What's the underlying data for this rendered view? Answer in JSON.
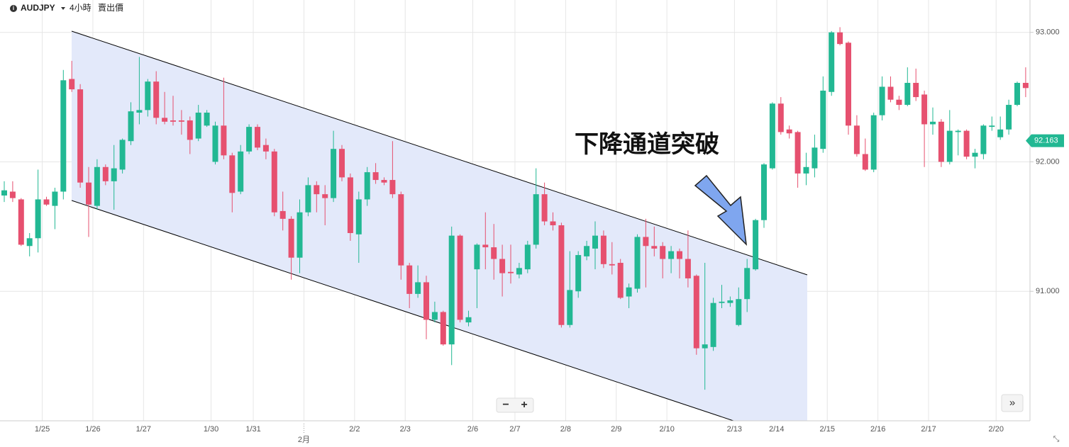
{
  "chart_data": {
    "type": "candlestick",
    "symbol": "AUDJPY",
    "interval": "4小時",
    "price_type": "賣出價",
    "annotation": "下降通道突破",
    "categories": [
      null,
      null,
      null,
      null,
      null,
      "1/25",
      null,
      null,
      null,
      null,
      null,
      "1/26",
      null,
      null,
      null,
      null,
      null,
      "1/27",
      null,
      null,
      null,
      null,
      null,
      null,
      null,
      "1/30",
      null,
      null,
      null,
      null,
      "1/31",
      null,
      null,
      null,
      null,
      null,
      "2月",
      null,
      null,
      null,
      null,
      null,
      "2/2",
      null,
      null,
      null,
      null,
      null,
      "2/3",
      null,
      null,
      null,
      null,
      null,
      null,
      null,
      "2/6",
      null,
      null,
      null,
      null,
      "2/7",
      null,
      null,
      null,
      null,
      null,
      "2/8",
      null,
      null,
      null,
      null,
      null,
      "2/9",
      null,
      null,
      null,
      null,
      null,
      "2/10",
      null,
      null,
      null,
      null,
      null,
      null,
      null,
      "2/13",
      null,
      null,
      null,
      null,
      "2/14",
      null,
      null,
      null,
      null,
      null,
      "2/15",
      null,
      null,
      null,
      null,
      null,
      "2/16",
      null,
      null,
      null,
      null,
      null,
      "2/17",
      null,
      null,
      null,
      null,
      null,
      null,
      null,
      "2/20",
      null,
      null,
      null
    ],
    "open": [
      91.74,
      91.77,
      91.71,
      91.35,
      91.41,
      91.71,
      91.66,
      91.77,
      92.64,
      92.56,
      91.84,
      91.66,
      91.96,
      91.85,
      91.94,
      92.16,
      92.38,
      92.4,
      92.62,
      92.34,
      92.32,
      92.32,
      92.32,
      92.18,
      92.28,
      92.0,
      92.28,
      92.05,
      91.77,
      92.08,
      92.27,
      92.13,
      92.08,
      91.62,
      91.56,
      91.26,
      91.61,
      91.82,
      91.75,
      91.72,
      92.1,
      91.88,
      91.44,
      91.71,
      91.92,
      91.86,
      91.86,
      91.75,
      91.2,
      90.98,
      91.07,
      90.78,
      90.84,
      90.59,
      91.43,
      90.76,
      91.17,
      91.36,
      91.34,
      91.25,
      91.15,
      91.13,
      91.17,
      91.36,
      91.75,
      91.54,
      91.51,
      90.74,
      91.0,
      91.27,
      91.33,
      91.43,
      91.21,
      91.22,
      90.96,
      91.02,
      91.42,
      91.35,
      91.35,
      91.25,
      91.31,
      91.25,
      91.12,
      90.56,
      90.57,
      90.91,
      90.91,
      90.74,
      90.94,
      91.17,
      91.55,
      91.95,
      92.45,
      92.25,
      92.23,
      91.91,
      91.95,
      92.1,
      92.54,
      93.0,
      92.92,
      92.28,
      92.06,
      91.94,
      92.36,
      92.58,
      92.48,
      92.44,
      92.61,
      92.52,
      92.29,
      92.31,
      92.0,
      92.23,
      92.24,
      92.04,
      92.06,
      92.27,
      92.19,
      92.25,
      92.44,
      92.61
    ],
    "high": [
      91.85,
      91.85,
      91.72,
      91.45,
      91.94,
      91.73,
      91.8,
      92.71,
      92.78,
      92.6,
      91.96,
      92.02,
      91.98,
      92.13,
      92.18,
      92.46,
      92.81,
      92.64,
      92.7,
      92.54,
      92.51,
      92.4,
      92.35,
      92.44,
      92.4,
      92.31,
      92.65,
      92.07,
      92.13,
      92.29,
      92.29,
      92.18,
      92.1,
      91.77,
      91.58,
      91.71,
      91.88,
      91.85,
      91.82,
      92.24,
      92.13,
      91.91,
      91.77,
      91.96,
      91.99,
      91.88,
      92.16,
      91.77,
      91.22,
      91.2,
      91.12,
      90.92,
      90.85,
      91.5,
      91.44,
      90.85,
      91.37,
      91.61,
      91.52,
      91.36,
      91.36,
      91.22,
      91.39,
      91.95,
      91.84,
      91.61,
      91.53,
      91.31,
      91.31,
      91.39,
      91.54,
      91.47,
      91.38,
      91.25,
      91.06,
      91.44,
      91.56,
      91.5,
      91.38,
      91.35,
      91.33,
      91.47,
      91.13,
      91.22,
      90.95,
      91.05,
      90.96,
      91.03,
      91.25,
      91.56,
      91.99,
      92.46,
      92.5,
      92.28,
      92.24,
      92.07,
      92.21,
      92.66,
      93.01,
      93.04,
      92.93,
      92.36,
      92.18,
      92.38,
      92.66,
      92.66,
      92.51,
      92.73,
      92.72,
      92.55,
      92.42,
      92.33,
      92.4,
      92.25,
      92.25,
      92.1,
      92.29,
      92.35,
      92.35,
      92.48,
      92.62,
      92.73
    ],
    "low": [
      91.69,
      91.69,
      91.35,
      91.27,
      91.3,
      91.66,
      91.48,
      91.71,
      92.54,
      91.8,
      91.42,
      91.63,
      91.82,
      91.63,
      91.91,
      92.13,
      92.29,
      92.35,
      92.29,
      92.29,
      92.28,
      92.21,
      92.06,
      92.16,
      92.27,
      91.98,
      92.02,
      91.61,
      91.75,
      92.06,
      92.09,
      92.02,
      91.58,
      91.47,
      91.09,
      91.14,
      91.58,
      91.61,
      91.51,
      91.69,
      91.85,
      91.39,
      91.22,
      91.66,
      91.83,
      91.82,
      91.72,
      91.09,
      90.87,
      90.95,
      90.63,
      90.76,
      90.58,
      90.43,
      90.76,
      90.73,
      90.87,
      91.17,
      91.09,
      90.96,
      91.06,
      91.1,
      91.14,
      91.33,
      91.51,
      91.47,
      90.72,
      90.72,
      90.95,
      91.24,
      91.17,
      91.18,
      91.13,
      90.94,
      90.87,
      90.99,
      91.03,
      91.27,
      91.1,
      91.14,
      91.1,
      91.03,
      90.51,
      90.24,
      90.54,
      90.87,
      90.88,
      90.73,
      90.84,
      91.16,
      91.49,
      91.94,
      92.21,
      92.18,
      91.8,
      91.82,
      91.88,
      92.07,
      92.51,
      92.9,
      92.21,
      92.04,
      91.93,
      91.92,
      92.32,
      92.46,
      92.4,
      92.43,
      92.47,
      91.96,
      92.21,
      91.96,
      91.98,
      92.05,
      92.02,
      91.95,
      92.02,
      92.24,
      92.17,
      92.21,
      92.43,
      92.5
    ],
    "close": [
      91.78,
      91.72,
      91.36,
      91.41,
      91.71,
      91.67,
      91.77,
      92.63,
      92.56,
      91.84,
      91.67,
      91.96,
      91.85,
      91.95,
      92.17,
      92.39,
      92.4,
      92.62,
      92.34,
      92.31,
      92.31,
      92.31,
      92.17,
      92.38,
      92.38,
      92.28,
      92.05,
      91.76,
      92.08,
      92.27,
      92.11,
      92.08,
      91.61,
      91.56,
      91.26,
      91.61,
      91.82,
      91.75,
      91.72,
      92.1,
      91.88,
      91.45,
      91.71,
      91.92,
      91.86,
      91.84,
      91.75,
      91.2,
      90.98,
      91.07,
      90.78,
      90.84,
      90.59,
      91.43,
      90.78,
      90.8,
      91.36,
      91.34,
      91.25,
      91.14,
      91.14,
      91.18,
      91.36,
      91.75,
      91.54,
      91.51,
      90.74,
      91.01,
      91.28,
      91.35,
      91.43,
      91.21,
      91.2,
      90.95,
      91.03,
      91.42,
      91.35,
      91.33,
      91.25,
      91.31,
      91.25,
      91.1,
      90.56,
      90.59,
      90.91,
      90.92,
      90.93,
      90.94,
      91.18,
      91.55,
      91.98,
      92.45,
      92.23,
      92.22,
      91.91,
      91.96,
      92.11,
      92.55,
      93.0,
      92.91,
      92.28,
      92.06,
      91.94,
      92.36,
      92.58,
      92.48,
      92.44,
      92.61,
      92.5,
      92.29,
      92.31,
      92.0,
      92.24,
      92.24,
      92.04,
      92.07,
      92.28,
      92.28,
      92.25,
      92.44,
      92.61,
      92.57
    ],
    "up_color": "#22b893",
    "down_color": "#e6506f",
    "ylim": [
      90,
      93.25
    ],
    "yticks": [
      {
        "value": 91,
        "label": "91.000"
      },
      {
        "value": 92,
        "label": "92.000"
      },
      {
        "value": 93,
        "label": "93.000"
      }
    ],
    "last_price": {
      "value": 92.163,
      "label": "92.163"
    },
    "grid": true
  }
}
